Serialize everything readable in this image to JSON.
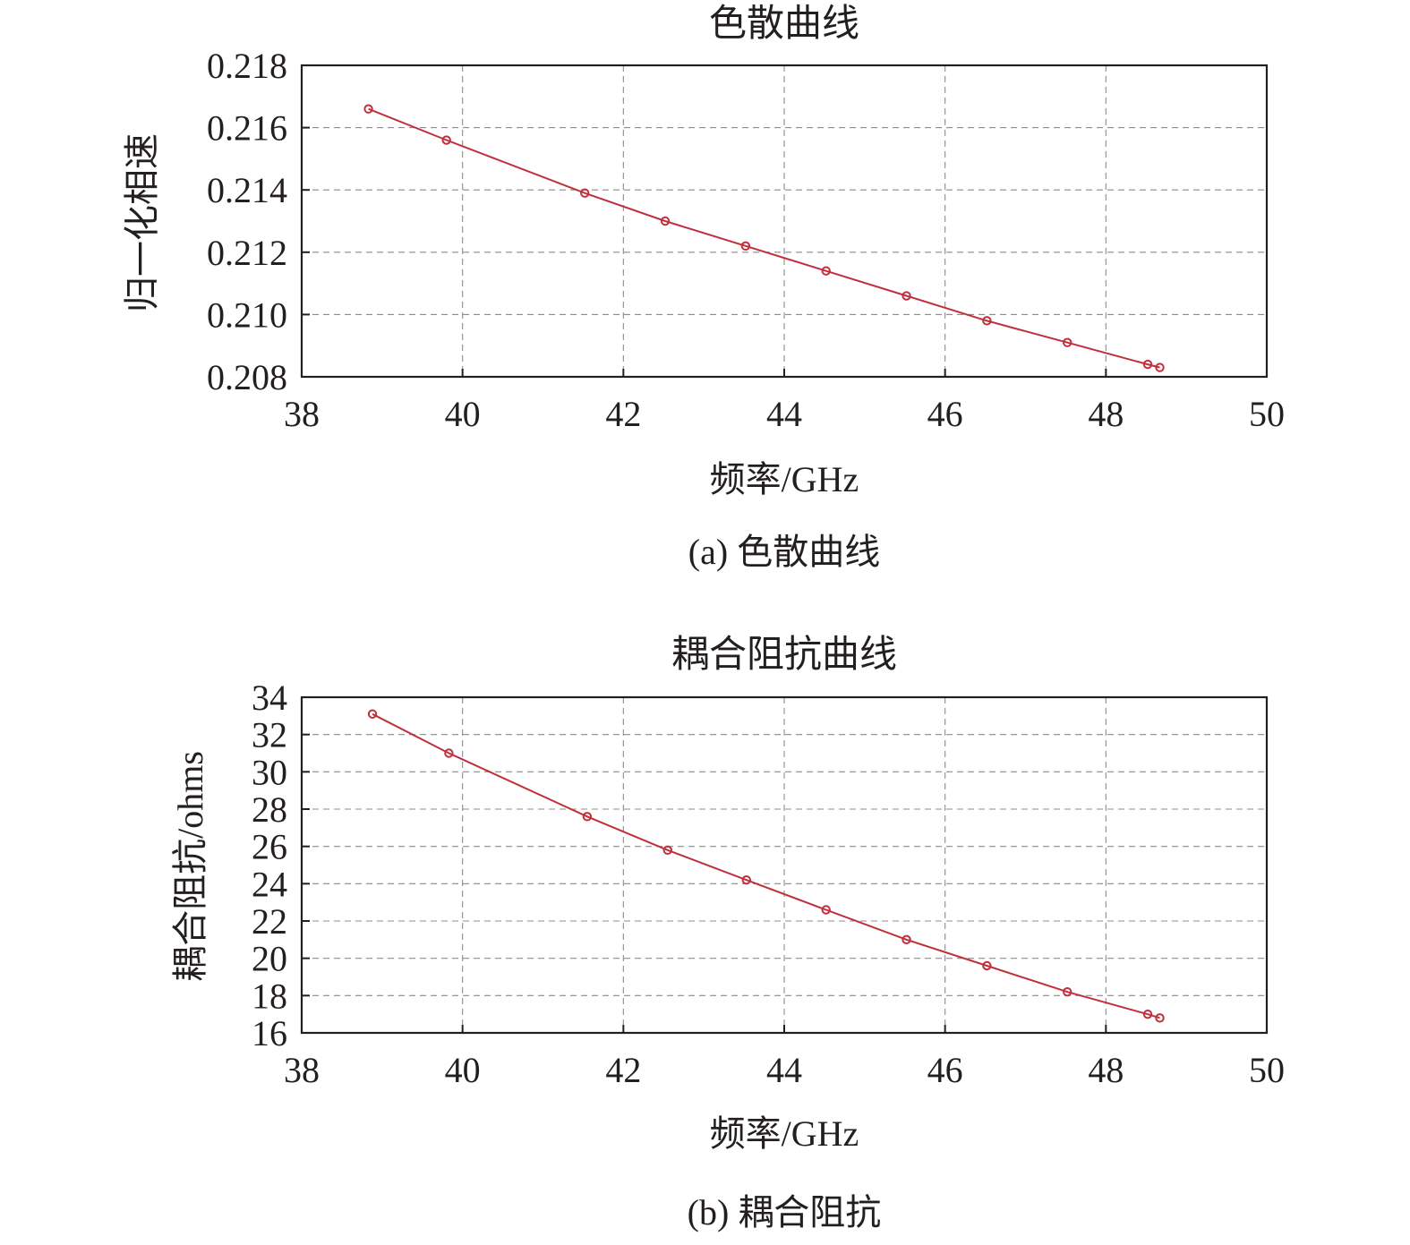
{
  "chart_data": [
    {
      "type": "line",
      "panel": "a",
      "title": "色散曲线",
      "caption": "(a) 色散曲线",
      "xlabel": "频率/GHz",
      "ylabel": "归一化相速",
      "xlim": [
        38,
        50
      ],
      "ylim": [
        0.208,
        0.218
      ],
      "xticks": [
        "38",
        "40",
        "42",
        "44",
        "46",
        "48",
        "50"
      ],
      "yticks": [
        "0.208",
        "0.210",
        "0.212",
        "0.214",
        "0.216",
        "0.218"
      ],
      "grid": true,
      "marker": "circle",
      "color": "#c0303c",
      "x": [
        38.83,
        39.8,
        41.52,
        42.52,
        43.52,
        44.52,
        45.52,
        46.52,
        47.52,
        48.52,
        48.67
      ],
      "y": [
        0.2166,
        0.2156,
        0.2139,
        0.213,
        0.2122,
        0.2114,
        0.2106,
        0.2098,
        0.2091,
        0.2084,
        0.2083
      ]
    },
    {
      "type": "line",
      "panel": "b",
      "title": "耦合阻抗曲线",
      "caption": "(b) 耦合阻抗",
      "xlabel": "频率/GHz",
      "ylabel": "耦合阻抗/ohms",
      "xlim": [
        38,
        50
      ],
      "ylim": [
        16,
        34
      ],
      "xticks": [
        "38",
        "40",
        "42",
        "44",
        "46",
        "48",
        "50"
      ],
      "yticks": [
        "16",
        "18",
        "20",
        "22",
        "24",
        "26",
        "28",
        "30",
        "32",
        "34"
      ],
      "grid": true,
      "marker": "circle",
      "color": "#c0303c",
      "x": [
        38.88,
        39.83,
        41.55,
        42.55,
        43.53,
        44.52,
        45.52,
        46.52,
        47.52,
        48.52,
        48.67
      ],
      "y": [
        33.1,
        31.0,
        27.6,
        25.8,
        24.2,
        22.6,
        21.0,
        19.6,
        18.2,
        17.0,
        16.8
      ]
    }
  ]
}
